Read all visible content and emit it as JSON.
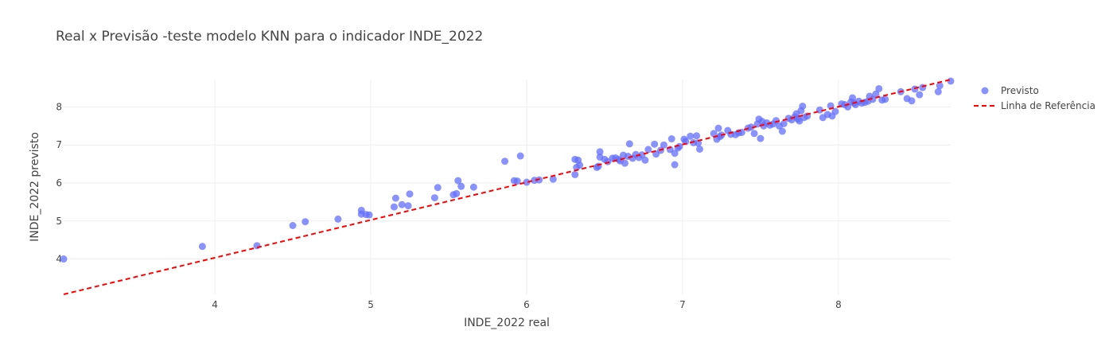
{
  "chart_data": {
    "type": "scatter",
    "title": "Real x Previsão -teste modelo KNN para o indicador INDE_2022",
    "xlabel": "INDE_2022 real",
    "ylabel": "INDE_2022 previsto",
    "xlim": [
      3.03,
      8.72
    ],
    "ylim": [
      3.07,
      8.72
    ],
    "xticks": [
      4,
      5,
      6,
      7,
      8
    ],
    "yticks": [
      4,
      5,
      6,
      7,
      8
    ],
    "grid": true,
    "legend_position": "top-right",
    "series": [
      {
        "name": "Previsto",
        "kind": "markers",
        "color": "#636efa",
        "points": [
          [
            3.03,
            4.0
          ],
          [
            3.92,
            4.33
          ],
          [
            4.27,
            4.35
          ],
          [
            4.5,
            4.88
          ],
          [
            4.58,
            4.98
          ],
          [
            4.79,
            5.05
          ],
          [
            4.94,
            5.28
          ],
          [
            4.94,
            5.18
          ],
          [
            4.97,
            5.17
          ],
          [
            4.99,
            5.16
          ],
          [
            5.15,
            5.37
          ],
          [
            5.16,
            5.6
          ],
          [
            5.2,
            5.43
          ],
          [
            5.24,
            5.4
          ],
          [
            5.25,
            5.71
          ],
          [
            5.41,
            5.61
          ],
          [
            5.43,
            5.88
          ],
          [
            5.53,
            5.69
          ],
          [
            5.55,
            5.72
          ],
          [
            5.56,
            6.06
          ],
          [
            5.58,
            5.91
          ],
          [
            5.66,
            5.89
          ],
          [
            5.86,
            6.57
          ],
          [
            5.92,
            6.06
          ],
          [
            5.94,
            6.05
          ],
          [
            5.96,
            6.71
          ],
          [
            6.0,
            6.02
          ],
          [
            6.05,
            6.07
          ],
          [
            6.08,
            6.08
          ],
          [
            6.17,
            6.1
          ],
          [
            6.31,
            6.22
          ],
          [
            6.31,
            6.62
          ],
          [
            6.32,
            6.41
          ],
          [
            6.33,
            6.6
          ],
          [
            6.34,
            6.47
          ],
          [
            6.45,
            6.41
          ],
          [
            6.46,
            6.44
          ],
          [
            6.47,
            6.68
          ],
          [
            6.47,
            6.82
          ],
          [
            6.5,
            6.62
          ],
          [
            6.52,
            6.56
          ],
          [
            6.55,
            6.65
          ],
          [
            6.57,
            6.66
          ],
          [
            6.59,
            6.62
          ],
          [
            6.6,
            6.58
          ],
          [
            6.62,
            6.73
          ],
          [
            6.63,
            6.52
          ],
          [
            6.65,
            6.7
          ],
          [
            6.66,
            7.03
          ],
          [
            6.68,
            6.65
          ],
          [
            6.7,
            6.75
          ],
          [
            6.72,
            6.67
          ],
          [
            6.74,
            6.74
          ],
          [
            6.76,
            6.6
          ],
          [
            6.78,
            6.88
          ],
          [
            6.82,
            7.02
          ],
          [
            6.83,
            6.76
          ],
          [
            6.86,
            6.86
          ],
          [
            6.88,
            7.0
          ],
          [
            6.92,
            6.88
          ],
          [
            6.93,
            7.16
          ],
          [
            6.95,
            6.48
          ],
          [
            6.95,
            6.78
          ],
          [
            6.97,
            6.92
          ],
          [
            6.98,
            6.96
          ],
          [
            7.01,
            7.15
          ],
          [
            7.02,
            7.09
          ],
          [
            7.05,
            7.23
          ],
          [
            7.07,
            7.06
          ],
          [
            7.09,
            7.24
          ],
          [
            7.1,
            7.05
          ],
          [
            7.11,
            6.89
          ],
          [
            7.2,
            7.3
          ],
          [
            7.22,
            7.15
          ],
          [
            7.23,
            7.44
          ],
          [
            7.24,
            7.22
          ],
          [
            7.25,
            7.26
          ],
          [
            7.29,
            7.38
          ],
          [
            7.31,
            7.28
          ],
          [
            7.34,
            7.27
          ],
          [
            7.36,
            7.32
          ],
          [
            7.38,
            7.33
          ],
          [
            7.42,
            7.44
          ],
          [
            7.44,
            7.47
          ],
          [
            7.46,
            7.3
          ],
          [
            7.48,
            7.55
          ],
          [
            7.49,
            7.68
          ],
          [
            7.5,
            7.17
          ],
          [
            7.51,
            7.62
          ],
          [
            7.52,
            7.5
          ],
          [
            7.54,
            7.58
          ],
          [
            7.56,
            7.52
          ],
          [
            7.58,
            7.55
          ],
          [
            7.6,
            7.64
          ],
          [
            7.62,
            7.5
          ],
          [
            7.64,
            7.36
          ],
          [
            7.65,
            7.56
          ],
          [
            7.68,
            7.7
          ],
          [
            7.7,
            7.66
          ],
          [
            7.72,
            7.74
          ],
          [
            7.73,
            7.82
          ],
          [
            7.74,
            7.68
          ],
          [
            7.75,
            7.63
          ],
          [
            7.76,
            7.9
          ],
          [
            7.77,
            8.02
          ],
          [
            7.78,
            7.72
          ],
          [
            7.8,
            7.76
          ],
          [
            7.88,
            7.92
          ],
          [
            7.9,
            7.72
          ],
          [
            7.93,
            7.8
          ],
          [
            7.95,
            8.03
          ],
          [
            7.96,
            7.76
          ],
          [
            7.98,
            7.88
          ],
          [
            8.02,
            8.08
          ],
          [
            8.04,
            8.06
          ],
          [
            8.06,
            8.0
          ],
          [
            8.08,
            8.13
          ],
          [
            8.09,
            8.24
          ],
          [
            8.1,
            8.1
          ],
          [
            8.11,
            8.06
          ],
          [
            8.13,
            8.15
          ],
          [
            8.15,
            8.1
          ],
          [
            8.17,
            8.12
          ],
          [
            8.19,
            8.15
          ],
          [
            8.2,
            8.28
          ],
          [
            8.22,
            8.2
          ],
          [
            8.24,
            8.34
          ],
          [
            8.26,
            8.48
          ],
          [
            8.28,
            8.18
          ],
          [
            8.3,
            8.2
          ],
          [
            8.4,
            8.4
          ],
          [
            8.44,
            8.22
          ],
          [
            8.47,
            8.16
          ],
          [
            8.49,
            8.47
          ],
          [
            8.52,
            8.32
          ],
          [
            8.54,
            8.51
          ],
          [
            8.64,
            8.4
          ],
          [
            8.65,
            8.56
          ],
          [
            8.72,
            8.68
          ]
        ]
      },
      {
        "name": "Linha de Referência",
        "kind": "line",
        "color": "#ff0000",
        "dash": "dash",
        "points": [
          [
            3.03,
            3.07
          ],
          [
            8.72,
            8.72
          ]
        ]
      }
    ]
  }
}
